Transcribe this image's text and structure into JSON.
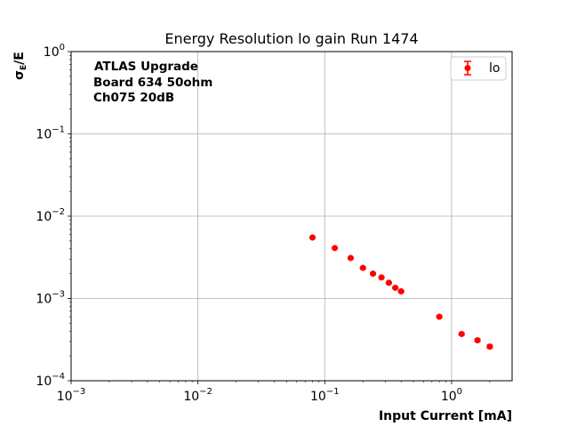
{
  "chart_data": {
    "type": "scatter",
    "title": "Energy Resolution lo gain Run 1474",
    "xlabel": "Input Current [mA]",
    "ylabel_main": "σ",
    "ylabel_sub": "E",
    "ylabel_tail": "/E",
    "xscale": "log",
    "yscale": "log",
    "xlim": [
      0.001,
      3
    ],
    "ylim": [
      0.0001,
      1
    ],
    "grid": true,
    "legend_position": "top-right",
    "annotation_lines": [
      "ATLAS Upgrade",
      "Board 634 50ohm",
      "Ch075 20dB"
    ],
    "x_ticks": [
      {
        "value": 0.001,
        "base": "10",
        "exp": "−3"
      },
      {
        "value": 0.01,
        "base": "10",
        "exp": "−2"
      },
      {
        "value": 0.1,
        "base": "10",
        "exp": "−1"
      },
      {
        "value": 1,
        "base": "10",
        "exp": "0"
      }
    ],
    "y_ticks": [
      {
        "value": 0.0001,
        "base": "10",
        "exp": "−4"
      },
      {
        "value": 0.001,
        "base": "10",
        "exp": "−3"
      },
      {
        "value": 0.01,
        "base": "10",
        "exp": "−2"
      },
      {
        "value": 0.1,
        "base": "10",
        "exp": "−1"
      },
      {
        "value": 1,
        "base": "10",
        "exp": "0"
      }
    ],
    "series": [
      {
        "name": "lo",
        "color": "#ff0000",
        "x": [
          0.08,
          0.12,
          0.16,
          0.2,
          0.24,
          0.28,
          0.32,
          0.36,
          0.4,
          0.8,
          1.2,
          1.6,
          2.0
        ],
        "y": [
          0.0055,
          0.0041,
          0.0031,
          0.00235,
          0.002,
          0.0018,
          0.00155,
          0.00135,
          0.00122,
          0.0006,
          0.00037,
          0.00031,
          0.00026
        ],
        "yerr": [
          8e-05,
          6e-05,
          5e-05,
          4e-05,
          3e-05,
          3e-05,
          3e-05,
          2e-05,
          2e-05,
          1e-05,
          1e-05,
          1e-05,
          1e-05
        ]
      }
    ]
  }
}
